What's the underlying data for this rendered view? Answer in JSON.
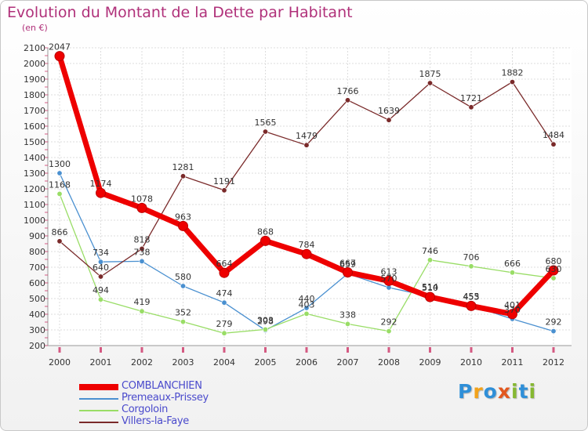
{
  "header": {
    "title": "Evolution du Montant de la Dette par Habitant",
    "unit": "(en €)"
  },
  "brand": {
    "letters": [
      {
        "char": "P",
        "color": "#2f8fd8"
      },
      {
        "char": "r",
        "color": "#f2a21a"
      },
      {
        "char": "o",
        "color": "#2f8fd8"
      },
      {
        "char": "x",
        "color": "#e2571e"
      },
      {
        "char": "i",
        "color": "#86b832"
      },
      {
        "char": "t",
        "color": "#2f8fd8"
      },
      {
        "char": "i",
        "color": "#86b832"
      }
    ]
  },
  "chart_data": {
    "type": "line",
    "title": "Evolution du Montant de la Dette par Habitant",
    "ylabel": "(en €)",
    "xlabel": "",
    "ylim": [
      200,
      2100
    ],
    "y_ticks": [
      200,
      300,
      400,
      500,
      600,
      700,
      800,
      900,
      1000,
      1100,
      1200,
      1300,
      1400,
      1500,
      1600,
      1700,
      1800,
      1900,
      2000,
      2100
    ],
    "grid": true,
    "legend_position": "bottom-left",
    "x": [
      "2000",
      "2001",
      "2002",
      "2003",
      "2004",
      "2005",
      "2006",
      "2007",
      "2008",
      "2009",
      "2010",
      "2011",
      "2012"
    ],
    "series": [
      {
        "name": "COMBLANCHIEN",
        "color": "#ee0000",
        "emphasis": true,
        "values": [
          2047,
          1174,
          1078,
          963,
          664,
          868,
          784,
          667,
          613,
          510,
          453,
          401,
          680
        ]
      },
      {
        "name": "Premeaux-Prissey",
        "color": "#4a90d0",
        "values": [
          1300,
          734,
          738,
          580,
          474,
          298,
          440,
          659,
          570,
          514,
          455,
          370,
          292
        ]
      },
      {
        "name": "Corgoloin",
        "color": "#99dd66",
        "values": [
          1168,
          494,
          419,
          352,
          279,
          303,
          403,
          338,
          292,
          746,
          706,
          666,
          630
        ]
      },
      {
        "name": "Villers-la-Faye",
        "color": "#7a2a2a",
        "values": [
          866,
          640,
          818,
          1281,
          1191,
          1565,
          1479,
          1766,
          1639,
          1875,
          1721,
          1882,
          1484
        ]
      }
    ]
  }
}
